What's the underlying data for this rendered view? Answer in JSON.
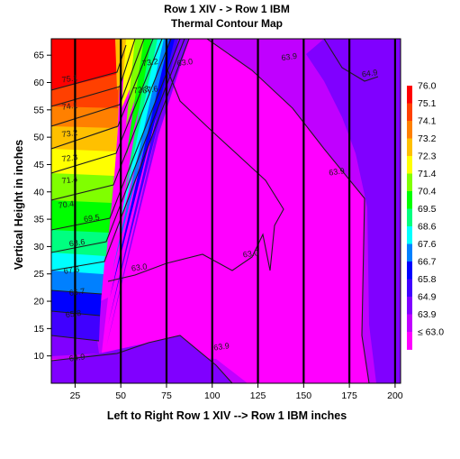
{
  "chart_data": {
    "type": "heatmap",
    "subtype": "filled-contour",
    "title": "Row 1 XIV - > Row 1 IBM",
    "subtitle": "Thermal Contour Map",
    "xlabel": "Left to Right Row 1 XIV --> Row 1 IBM inches",
    "ylabel": "Vertical Height in inches",
    "xlim": [
      12,
      203
    ],
    "ylim": [
      5,
      68
    ],
    "x_ticks": [
      25,
      50,
      75,
      100,
      125,
      150,
      175,
      200
    ],
    "y_ticks": [
      10,
      15,
      20,
      25,
      30,
      35,
      40,
      45,
      50,
      55,
      60,
      65
    ],
    "x_tick_labels": [
      "25",
      "50",
      "75",
      "100",
      "125",
      "150",
      "175",
      "200"
    ],
    "y_tick_labels": [
      "10",
      "15",
      "20",
      "25",
      "30",
      "35",
      "40",
      "45",
      "50",
      "55",
      "60",
      "65"
    ],
    "vertical_gridlines_x": [
      25,
      50,
      75,
      100,
      125,
      150,
      175,
      200
    ],
    "legend": {
      "placement": "right",
      "levels": [
        {
          "label": "76.0",
          "color": "#ff0000"
        },
        {
          "label": "75.1",
          "color": "#ff4000"
        },
        {
          "label": "74.1",
          "color": "#ff8000"
        },
        {
          "label": "73.2",
          "color": "#ffc000"
        },
        {
          "label": "72.3",
          "color": "#ffff00"
        },
        {
          "label": "71.4",
          "color": "#80ff00"
        },
        {
          "label": "70.4",
          "color": "#00ff00"
        },
        {
          "label": "69.5",
          "color": "#00ff80"
        },
        {
          "label": "68.6",
          "color": "#00ffff"
        },
        {
          "label": "67.6",
          "color": "#0080ff"
        },
        {
          "label": "66.7",
          "color": "#0000ff"
        },
        {
          "label": "65.8",
          "color": "#4000ff"
        },
        {
          "label": "64.9",
          "color": "#8000ff"
        },
        {
          "label": "63.9",
          "color": "#c000ff"
        },
        {
          "label": "≤ 63.0",
          "color": "#ff00ff"
        }
      ]
    },
    "contour_labels": [
      {
        "text": "75.1",
        "x": 18,
        "y": 60
      },
      {
        "text": "74.1",
        "x": 18,
        "y": 55
      },
      {
        "text": "73.2",
        "x": 18,
        "y": 50
      },
      {
        "text": "72.3",
        "x": 18,
        "y": 45.5
      },
      {
        "text": "71.4",
        "x": 18,
        "y": 41.5
      },
      {
        "text": "70.4",
        "x": 16,
        "y": 37
      },
      {
        "text": "69.5",
        "x": 30,
        "y": 34.5
      },
      {
        "text": "68.6",
        "x": 22,
        "y": 30
      },
      {
        "text": "67.6",
        "x": 19,
        "y": 25
      },
      {
        "text": "66.7",
        "x": 22,
        "y": 21
      },
      {
        "text": "65.8",
        "x": 20,
        "y": 17
      },
      {
        "text": "64.9",
        "x": 22,
        "y": 9
      },
      {
        "text": "63.0",
        "x": 56,
        "y": 25.5
      },
      {
        "text": "63.0",
        "x": 117,
        "y": 28
      },
      {
        "text": "63.0",
        "x": 81,
        "y": 63
      },
      {
        "text": "63.9",
        "x": 138,
        "y": 64
      },
      {
        "text": "63.9",
        "x": 164,
        "y": 43
      },
      {
        "text": "64.9",
        "x": 182,
        "y": 61
      },
      {
        "text": "63.9",
        "x": 101,
        "y": 11
      },
      {
        "text": "72.3",
        "x": 57,
        "y": 58
      },
      {
        "text": "73.2",
        "x": 62,
        "y": 63
      },
      {
        "text": "67.6",
        "x": 62,
        "y": 58
      }
    ]
  }
}
